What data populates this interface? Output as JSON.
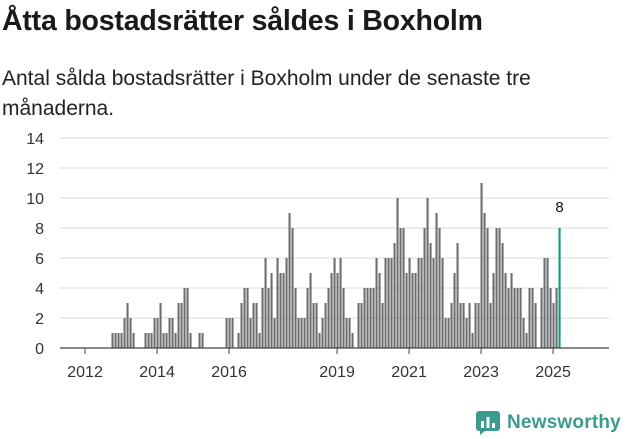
{
  "title": "Åtta bostadsrätter såldes i Boxholm",
  "subtitle": "Antal sålda bostadsrätter i Boxholm under de senaste tre månaderna.",
  "brand": {
    "name": "Newsworthy"
  },
  "colors": {
    "bar": "#6d6d72",
    "highlight": "#12958d",
    "grid": "#d9d9d9",
    "axis": "#444444",
    "brand": "#3d9a8f"
  },
  "chart_data": {
    "type": "bar",
    "title": "Åtta bostadsrätter såldes i Boxholm",
    "xlabel": "",
    "ylabel": "",
    "ylim": [
      0,
      14
    ],
    "y_ticks": [
      "0",
      "2",
      "4",
      "6",
      "8",
      "10",
      "12",
      "14"
    ],
    "x_ticks": [
      {
        "label": "2012",
        "index": 0
      },
      {
        "label": "2014",
        "index": 24
      },
      {
        "label": "2016",
        "index": 48
      },
      {
        "label": "2019",
        "index": 84
      },
      {
        "label": "2021",
        "index": 108
      },
      {
        "label": "2023",
        "index": 132
      },
      {
        "label": "2025",
        "index": 156
      }
    ],
    "start_month": "2012-01",
    "series": [
      {
        "name": "Antal sålda bostadsrätter",
        "values": [
          0,
          0,
          0,
          0,
          0,
          0,
          0,
          0,
          0,
          1,
          1,
          1,
          1,
          2,
          3,
          2,
          1,
          0,
          0,
          0,
          1,
          1,
          1,
          2,
          2,
          3,
          1,
          1,
          2,
          2,
          1,
          3,
          3,
          4,
          4,
          1,
          0,
          0,
          1,
          1,
          0,
          0,
          0,
          0,
          0,
          0,
          0,
          2,
          2,
          2,
          0,
          1,
          3,
          4,
          4,
          2,
          3,
          3,
          1,
          4,
          6,
          4,
          5,
          2,
          6,
          5,
          5,
          6,
          9,
          8,
          4,
          2,
          2,
          2,
          4,
          5,
          3,
          3,
          1,
          2,
          3,
          4,
          5,
          6,
          5,
          6,
          4,
          2,
          2,
          1,
          0,
          3,
          3,
          4,
          4,
          4,
          4,
          6,
          5,
          3,
          6,
          6,
          6,
          7,
          10,
          8,
          8,
          5,
          6,
          5,
          5,
          6,
          6,
          8,
          10,
          7,
          6,
          9,
          8,
          6,
          2,
          2,
          3,
          5,
          7,
          3,
          3,
          2,
          3,
          1,
          3,
          3,
          11,
          9,
          8,
          3,
          5,
          8,
          8,
          7,
          5,
          4,
          5,
          4,
          4,
          4,
          2,
          1,
          4,
          4,
          3,
          0,
          4,
          6,
          6,
          4,
          3,
          4,
          8
        ],
        "highlight_last": true,
        "last_label": "8"
      }
    ]
  }
}
